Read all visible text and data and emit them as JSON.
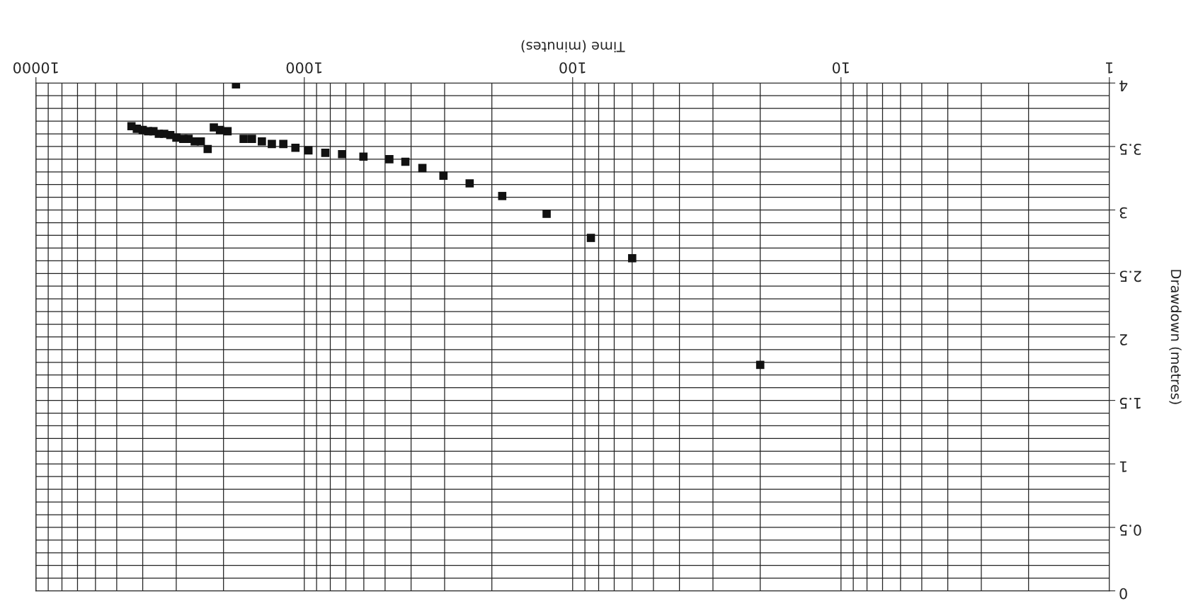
{
  "chart_data": {
    "type": "scatter",
    "xlabel": "Time (minutes)",
    "ylabel": "Drawdown (metres)",
    "log": "x",
    "xlim": [
      10000,
      1
    ],
    "xticks": [
      1,
      10,
      100,
      1000,
      10000
    ],
    "ylim": [
      0,
      4
    ],
    "yticks": [
      0,
      0.5,
      1,
      1.5,
      2,
      2.5,
      3,
      3.5,
      4
    ],
    "grid": true,
    "marker": "square",
    "x": [
      20,
      60,
      85.5,
      125,
      183,
      242,
      303,
      363,
      420,
      482,
      602,
      723,
      835,
      965,
      1079,
      1197,
      1321,
      1439,
      1567,
      1683,
      1797,
      1932,
      2062,
      2173,
      2291,
      2430,
      2560,
      2698,
      2825,
      2997,
      3157,
      3327,
      3483,
      3648,
      3819,
      4000,
      4207,
      4406
    ],
    "series": [
      {
        "color": "#111111",
        "values": [
          1.78,
          2.62,
          2.78,
          2.97,
          3.11,
          3.21,
          3.27,
          3.33,
          3.38,
          3.4,
          3.42,
          3.44,
          3.45,
          3.47,
          3.49,
          3.52,
          3.52,
          3.54,
          3.56,
          3.56,
          3.99,
          3.62,
          3.63,
          3.65,
          3.48,
          3.54,
          3.54,
          3.56,
          3.56,
          3.57,
          3.59,
          3.6,
          3.6,
          3.62,
          3.62,
          3.63,
          3.64,
          3.66
        ]
      }
    ]
  }
}
